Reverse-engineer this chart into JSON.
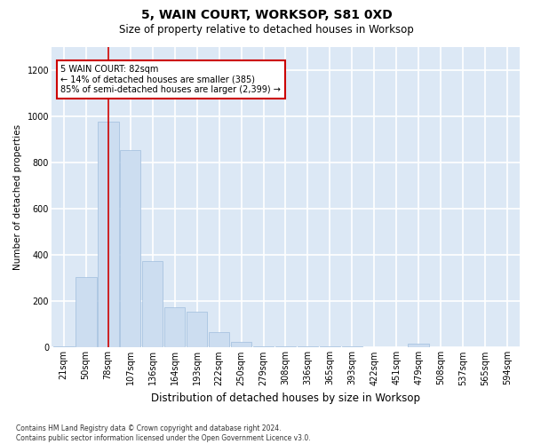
{
  "title": "5, WAIN COURT, WORKSOP, S81 0XD",
  "subtitle": "Size of property relative to detached houses in Worksop",
  "xlabel": "Distribution of detached houses by size in Worksop",
  "ylabel": "Number of detached properties",
  "footnote": "Contains HM Land Registry data © Crown copyright and database right 2024.\nContains public sector information licensed under the Open Government Licence v3.0.",
  "bar_color": "#ccddf0",
  "bar_edge_color": "#a0bedd",
  "annotation_box_color": "#cc0000",
  "annotation_text": "5 WAIN COURT: 82sqm\n← 14% of detached houses are smaller (385)\n85% of semi-detached houses are larger (2,399) →",
  "categories": [
    "21sqm",
    "50sqm",
    "78sqm",
    "107sqm",
    "136sqm",
    "164sqm",
    "193sqm",
    "222sqm",
    "250sqm",
    "279sqm",
    "308sqm",
    "336sqm",
    "365sqm",
    "393sqm",
    "422sqm",
    "451sqm",
    "479sqm",
    "508sqm",
    "537sqm",
    "565sqm",
    "594sqm"
  ],
  "values": [
    5,
    305,
    975,
    855,
    375,
    175,
    155,
    65,
    25,
    5,
    5,
    5,
    5,
    5,
    0,
    0,
    18,
    0,
    0,
    0,
    0
  ],
  "highlight_cat": "78sqm",
  "ylim": [
    0,
    1300
  ],
  "yticks": [
    0,
    200,
    400,
    600,
    800,
    1000,
    1200
  ],
  "background_color": "#dce8f5",
  "fig_bg_color": "#ffffff",
  "grid_color": "#ffffff",
  "title_fontsize": 10,
  "subtitle_fontsize": 8.5,
  "ylabel_fontsize": 7.5,
  "xlabel_fontsize": 8.5,
  "tick_fontsize": 7,
  "annotation_fontsize": 7,
  "footnote_fontsize": 5.5
}
